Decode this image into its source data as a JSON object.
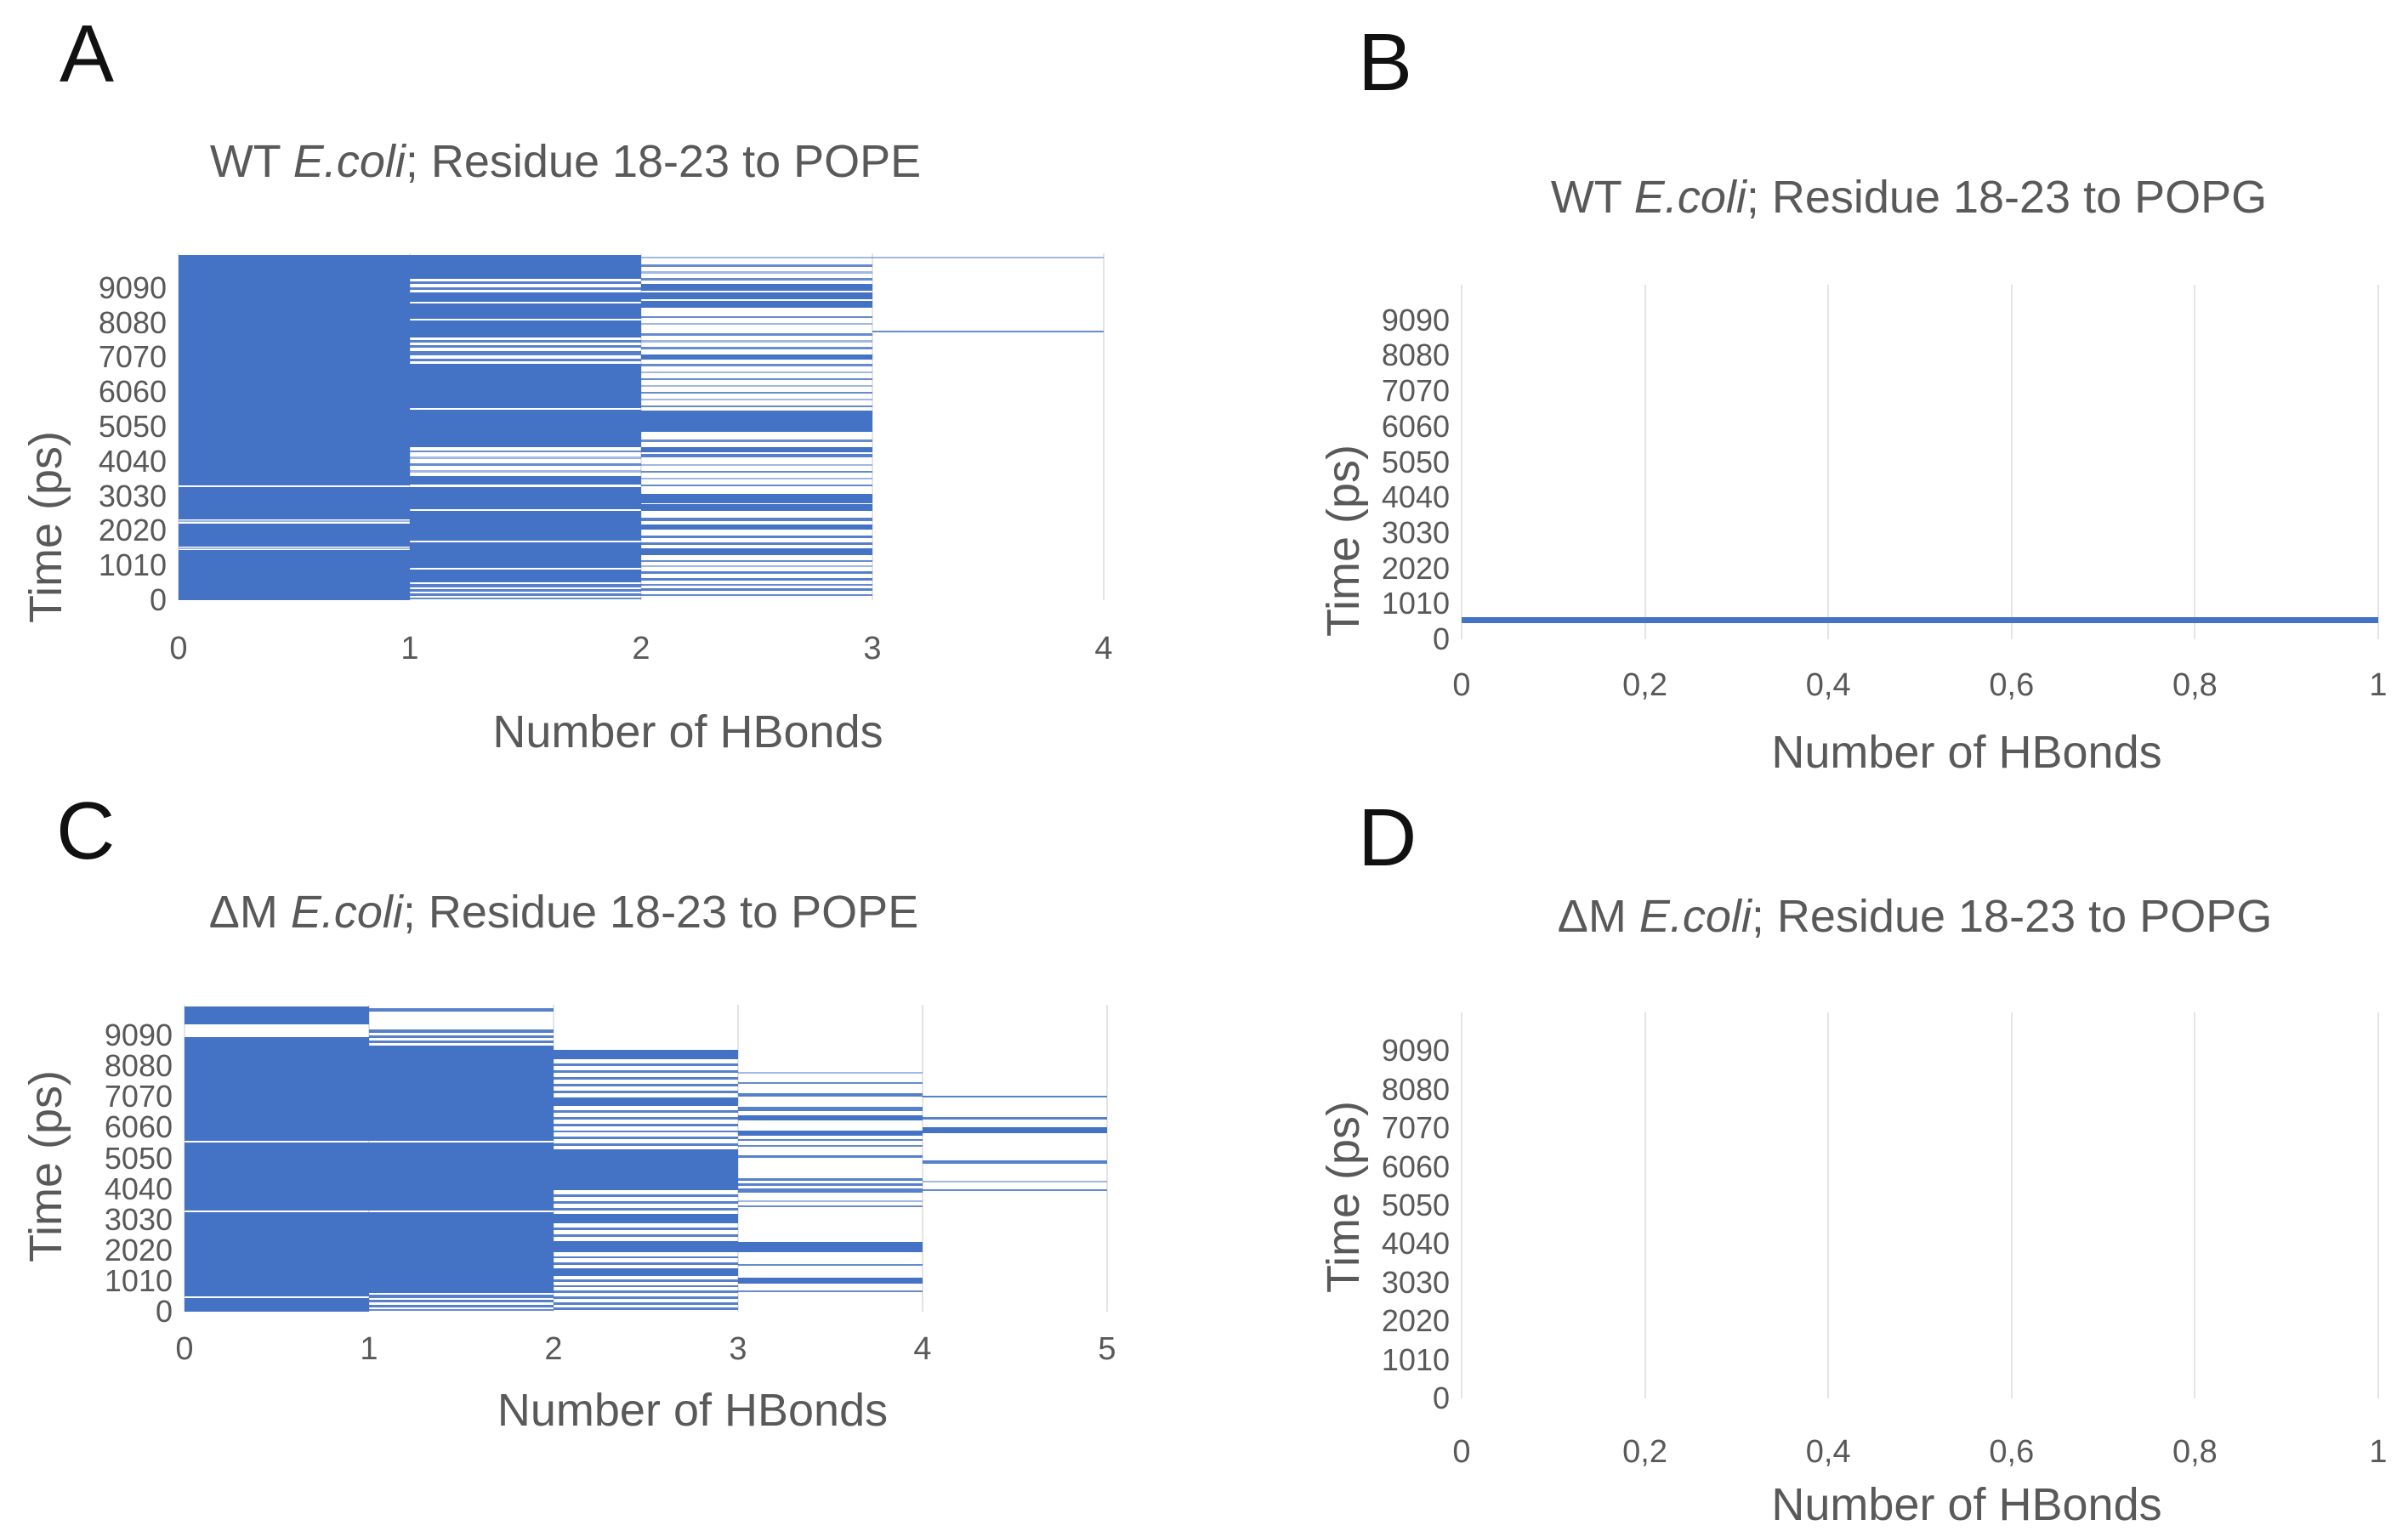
{
  "page": {
    "background": "#ffffff"
  },
  "colors": {
    "series_blue": "#4472C4",
    "gridline": "#E4E4E4",
    "axis_text": "#595959",
    "panel_letter": "#111111"
  },
  "chart_data": [
    {
      "id": "A",
      "type": "line",
      "letter": "A",
      "title": {
        "prefix": "WT ",
        "italic": "E.coli",
        "suffix": "; Residue 18-23 to POPE"
      },
      "xlabel": "Number of HBonds",
      "ylabel": "Time (ps)",
      "grid": "vertical-only",
      "series_color": "#4472C4",
      "x_max": 4,
      "x_ticks": [
        {
          "label": "0",
          "v": 0
        },
        {
          "label": "1",
          "v": 1
        },
        {
          "label": "2",
          "v": 2
        },
        {
          "label": "3",
          "v": 3
        },
        {
          "label": "4",
          "v": 4
        }
      ],
      "y_max": 10100,
      "y_ticks": [
        {
          "label": "0",
          "v": 0
        },
        {
          "label": "1010",
          "v": 1010
        },
        {
          "label": "2020",
          "v": 2020
        },
        {
          "label": "3030",
          "v": 3030
        },
        {
          "label": "4040",
          "v": 4040
        },
        {
          "label": "5050",
          "v": 5050
        },
        {
          "label": "6060",
          "v": 6060
        },
        {
          "label": "7070",
          "v": 7070
        },
        {
          "label": "8080",
          "v": 8080
        },
        {
          "label": "9090",
          "v": 9090
        }
      ],
      "columns": [
        {
          "x0": 0,
          "x1": 1,
          "bands_ps": [
            [
              0,
              1450
            ],
            [
              1480,
              1530
            ],
            [
              1560,
              2240
            ],
            [
              2270,
              2320
            ],
            [
              2350,
              3290
            ],
            [
              3340,
              10050
            ]
          ]
        },
        {
          "x0": 1,
          "x1": 2,
          "bands_ps": [
            [
              20,
              80
            ],
            [
              120,
              190
            ],
            [
              240,
              320
            ],
            [
              370,
              460
            ],
            [
              520,
              890
            ],
            [
              940,
              1690
            ],
            [
              1740,
              2590
            ],
            [
              2640,
              3300
            ],
            [
              3360,
              3620
            ],
            [
              3720,
              3780
            ],
            [
              3920,
              3980
            ],
            [
              4120,
              4180
            ],
            [
              4300,
              4360
            ],
            [
              4450,
              5550
            ],
            [
              5600,
              6880
            ],
            [
              6960,
              7040
            ],
            [
              7120,
              7260
            ],
            [
              7340,
              7420
            ],
            [
              7500,
              7580
            ],
            [
              7660,
              8140
            ],
            [
              8190,
              8650
            ],
            [
              8700,
              8960
            ],
            [
              9040,
              9120
            ],
            [
              9200,
              9280
            ],
            [
              9360,
              10050
            ]
          ]
        },
        {
          "x0": 2,
          "x1": 3,
          "bands_ps": [
            [
              130,
              180
            ],
            [
              270,
              340
            ],
            [
              430,
              480
            ],
            [
              570,
              650
            ],
            [
              770,
              840
            ],
            [
              960,
              1020
            ],
            [
              1110,
              1170
            ],
            [
              1300,
              1510
            ],
            [
              1620,
              1690
            ],
            [
              1810,
              1880
            ],
            [
              2060,
              2210
            ],
            [
              2310,
              2390
            ],
            [
              2610,
              2790
            ],
            [
              2830,
              3090
            ],
            [
              3310,
              3370
            ],
            [
              3510,
              3570
            ],
            [
              3710,
              3770
            ],
            [
              3910,
              3970
            ],
            [
              4160,
              4260
            ],
            [
              4310,
              4460
            ],
            [
              4610,
              4670
            ],
            [
              4910,
              5510
            ],
            [
              5610,
              5670
            ],
            [
              5810,
              5870
            ],
            [
              6010,
              6070
            ],
            [
              6210,
              6270
            ],
            [
              6410,
              6470
            ],
            [
              6610,
              6670
            ],
            [
              6810,
              6870
            ],
            [
              7010,
              7160
            ],
            [
              7310,
              7370
            ],
            [
              7510,
              7570
            ],
            [
              7710,
              7770
            ],
            [
              8010,
              8070
            ],
            [
              8210,
              8270
            ],
            [
              8510,
              8710
            ],
            [
              8760,
              8960
            ],
            [
              9010,
              9210
            ],
            [
              9310,
              9370
            ],
            [
              9510,
              9570
            ],
            [
              9710,
              9770
            ],
            [
              9960,
              10010
            ]
          ]
        },
        {
          "x0": 3,
          "x1": 4,
          "bands_ps": [
            [
              7790,
              7840
            ],
            [
              9960,
              10010
            ]
          ]
        }
      ]
    },
    {
      "id": "B",
      "type": "line",
      "letter": "B",
      "title": {
        "prefix": "WT ",
        "italic": "E.coli",
        "suffix": "; Residue 18-23 to POPG"
      },
      "xlabel": "Number of HBonds",
      "ylabel": "Time (ps)",
      "grid": "vertical-only",
      "series_color": "#4472C4",
      "x_max": 1,
      "x_ticks": [
        {
          "label": "0",
          "v": 0
        },
        {
          "label": "0,2",
          "v": 0.2
        },
        {
          "label": "0,4",
          "v": 0.4
        },
        {
          "label": "0,6",
          "v": 0.6
        },
        {
          "label": "0,8",
          "v": 0.8
        },
        {
          "label": "1",
          "v": 1
        }
      ],
      "y_max": 10100,
      "y_ticks": [
        {
          "label": "0",
          "v": 0
        },
        {
          "label": "1010",
          "v": 1010
        },
        {
          "label": "2020",
          "v": 2020
        },
        {
          "label": "3030",
          "v": 3030
        },
        {
          "label": "4040",
          "v": 4040
        },
        {
          "label": "5050",
          "v": 5050
        },
        {
          "label": "6060",
          "v": 6060
        },
        {
          "label": "7070",
          "v": 7070
        },
        {
          "label": "8080",
          "v": 8080
        },
        {
          "label": "9090",
          "v": 9090
        }
      ],
      "columns": [
        {
          "x0": 0,
          "x1": 1,
          "bands_ps": [
            [
              470,
              640
            ]
          ]
        }
      ]
    },
    {
      "id": "C",
      "type": "line",
      "letter": "C",
      "title": {
        "prefix": "ΔM ",
        "italic": "E.coli",
        "suffix": "; Residue 18-23 to POPE"
      },
      "xlabel": "Number of HBonds",
      "ylabel": "Time (ps)",
      "grid": "vertical-only",
      "series_color": "#4472C4",
      "x_max": 5,
      "x_ticks": [
        {
          "label": "0",
          "v": 0
        },
        {
          "label": "1",
          "v": 1
        },
        {
          "label": "2",
          "v": 2
        },
        {
          "label": "3",
          "v": 3
        },
        {
          "label": "4",
          "v": 4
        },
        {
          "label": "5",
          "v": 5
        }
      ],
      "y_max": 10100,
      "y_ticks": [
        {
          "label": "0",
          "v": 0
        },
        {
          "label": "1010",
          "v": 1010
        },
        {
          "label": "2020",
          "v": 2020
        },
        {
          "label": "3030",
          "v": 3030
        },
        {
          "label": "4040",
          "v": 4040
        },
        {
          "label": "5050",
          "v": 5050
        },
        {
          "label": "6060",
          "v": 6060
        },
        {
          "label": "7070",
          "v": 7070
        },
        {
          "label": "8080",
          "v": 8080
        },
        {
          "label": "9090",
          "v": 9090
        }
      ],
      "columns": [
        {
          "x0": 0,
          "x1": 1,
          "bands_ps": [
            [
              0,
              450
            ],
            [
              500,
              3270
            ],
            [
              3320,
              5560
            ],
            [
              5610,
              9040
            ],
            [
              9460,
              10050
            ]
          ]
        },
        {
          "x0": 1,
          "x1": 2,
          "bands_ps": [
            [
              30,
              90
            ],
            [
              150,
              230
            ],
            [
              300,
              380
            ],
            [
              450,
              560
            ],
            [
              620,
              3270
            ],
            [
              3320,
              5560
            ],
            [
              5610,
              8760
            ],
            [
              8830,
              8920
            ],
            [
              9010,
              9100
            ],
            [
              9190,
              9280
            ],
            [
              9870,
              9990
            ]
          ]
        },
        {
          "x0": 2,
          "x1": 3,
          "bands_ps": [
            [
              60,
              140
            ],
            [
              230,
              310
            ],
            [
              420,
              500
            ],
            [
              610,
              690
            ],
            [
              800,
              880
            ],
            [
              990,
              1070
            ],
            [
              1180,
              1420
            ],
            [
              1530,
              1610
            ],
            [
              1750,
              1830
            ],
            [
              1970,
              2320
            ],
            [
              2460,
              2540
            ],
            [
              2680,
              2760
            ],
            [
              2900,
              3210
            ],
            [
              3330,
              3410
            ],
            [
              3550,
              3630
            ],
            [
              3770,
              3850
            ],
            [
              4000,
              5330
            ],
            [
              5450,
              5530
            ],
            [
              5670,
              5750
            ],
            [
              5890,
              5970
            ],
            [
              6110,
              6190
            ],
            [
              6330,
              6410
            ],
            [
              6550,
              6630
            ],
            [
              6760,
              7060
            ],
            [
              7200,
              7280
            ],
            [
              7420,
              7500
            ],
            [
              7640,
              7720
            ],
            [
              7860,
              7940
            ],
            [
              8080,
              8160
            ],
            [
              8300,
              8620
            ]
          ]
        },
        {
          "x0": 3,
          "x1": 4,
          "bands_ps": [
            [
              650,
              710
            ],
            [
              930,
              1120
            ],
            [
              1500,
              1560
            ],
            [
              1970,
              2290
            ],
            [
              3440,
              3500
            ],
            [
              3600,
              3660
            ],
            [
              3930,
              4060
            ],
            [
              4150,
              4230
            ],
            [
              4300,
              4380
            ],
            [
              5050,
              5150
            ],
            [
              5420,
              5470
            ],
            [
              5620,
              5690
            ],
            [
              5800,
              5970
            ],
            [
              6300,
              6460
            ],
            [
              6600,
              6740
            ],
            [
              7080,
              7180
            ],
            [
              7500,
              7560
            ],
            [
              7830,
              7890
            ]
          ]
        },
        {
          "x0": 4,
          "x1": 5,
          "bands_ps": [
            [
              3960,
              4020
            ],
            [
              4260,
              4320
            ],
            [
              4870,
              4990
            ],
            [
              5880,
              6060
            ],
            [
              6330,
              6400
            ],
            [
              7040,
              7110
            ]
          ]
        }
      ]
    },
    {
      "id": "D",
      "type": "line",
      "letter": "D",
      "title": {
        "prefix": "ΔM ",
        "italic": "E.coli",
        "suffix": "; Residue 18-23 to POPG"
      },
      "xlabel": "Number of HBonds",
      "ylabel": "Time (ps)",
      "grid": "vertical-only",
      "series_color": "#4472C4",
      "x_max": 1,
      "x_ticks": [
        {
          "label": "0",
          "v": 0
        },
        {
          "label": "0,2",
          "v": 0.2
        },
        {
          "label": "0,4",
          "v": 0.4
        },
        {
          "label": "0,6",
          "v": 0.6
        },
        {
          "label": "0,8",
          "v": 0.8
        },
        {
          "label": "1",
          "v": 1
        }
      ],
      "y_max": 10100,
      "y_ticks": [
        {
          "label": "0",
          "v": 0
        },
        {
          "label": "1010",
          "v": 1010
        },
        {
          "label": "2020",
          "v": 2020
        },
        {
          "label": "3030",
          "v": 3030
        },
        {
          "label": "4040",
          "v": 4040
        },
        {
          "label": "5050",
          "v": 5050
        },
        {
          "label": "6060",
          "v": 6060
        },
        {
          "label": "7070",
          "v": 7070
        },
        {
          "label": "8080",
          "v": 8080
        },
        {
          "label": "9090",
          "v": 9090
        }
      ],
      "columns": [
        {
          "x0": 0,
          "x1": 1,
          "bands_ps": []
        }
      ]
    }
  ]
}
